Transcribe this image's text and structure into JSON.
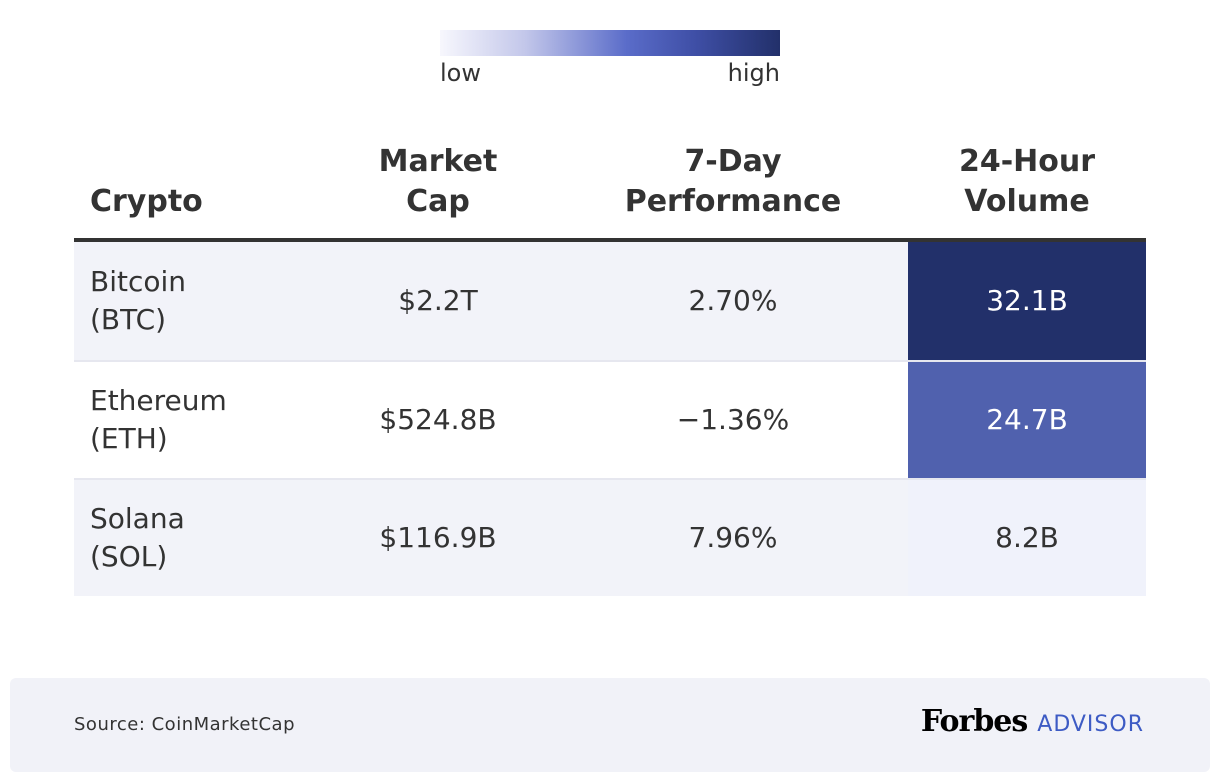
{
  "legend": {
    "low_label": "low",
    "high_label": "high",
    "gradient_colors": [
      "#f7f7fd",
      "#c3c7ea",
      "#5a6cc9",
      "#3f4fa6",
      "#22306a"
    ]
  },
  "chart_data": {
    "type": "table",
    "columns": [
      {
        "line1": "",
        "line2": "Crypto"
      },
      {
        "line1": "Market",
        "line2": "Cap"
      },
      {
        "line1": "7-Day",
        "line2": "Performance"
      },
      {
        "line1": "24-Hour",
        "line2": "Volume"
      }
    ],
    "rows": [
      {
        "name_line1": "Bitcoin",
        "name_line2": "(BTC)",
        "market_cap": "$2.2T",
        "performance_7d": "2.70%",
        "volume_24h": "32.1B",
        "volume_value": 32.1,
        "volume_color": "#22306a",
        "volume_text_color": "#ffffff"
      },
      {
        "name_line1": "Ethereum",
        "name_line2": "(ETH)",
        "market_cap": "$524.8B",
        "performance_7d": "−1.36%",
        "volume_24h": "24.7B",
        "volume_value": 24.7,
        "volume_color": "#5061ae",
        "volume_text_color": "#ffffff"
      },
      {
        "name_line1": "Solana",
        "name_line2": "(SOL)",
        "market_cap": "$116.9B",
        "performance_7d": "7.96%",
        "volume_24h": "8.2B",
        "volume_value": 8.2,
        "volume_color": "#f0f2fb",
        "volume_text_color": "#333333"
      }
    ]
  },
  "footer": {
    "source": "Source: CoinMarketCap",
    "brand_name": "Forbes",
    "brand_suffix": "ADVISOR"
  },
  "colors": {
    "text": "#333333",
    "brand_accent": "#3d5bc4",
    "row_shade": "#f2f3f9"
  }
}
